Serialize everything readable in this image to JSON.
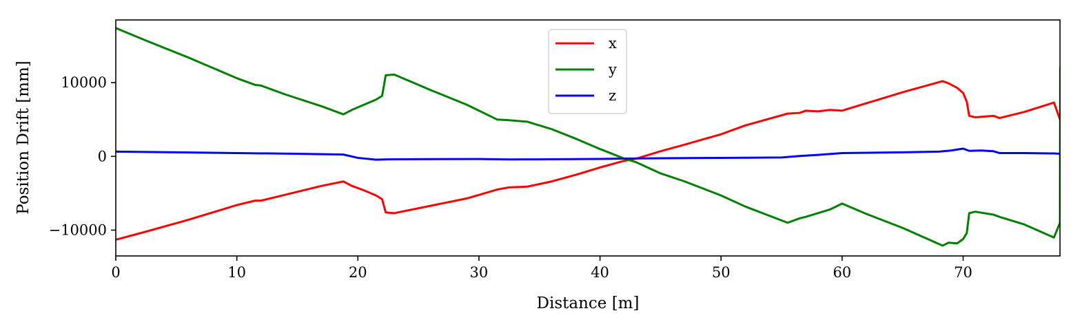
{
  "chart_data": {
    "type": "line",
    "title": "",
    "xlabel": "Distance [m]",
    "ylabel": "Position Drift [mm]",
    "xlim": [
      0,
      78
    ],
    "ylim": [
      -13500,
      18500
    ],
    "xticks": [
      0,
      10,
      20,
      30,
      40,
      50,
      60,
      70
    ],
    "xtick_labels": [
      "0",
      "10",
      "20",
      "30",
      "40",
      "50",
      "60",
      "70"
    ],
    "yticks": [
      -10000,
      0,
      10000
    ],
    "ytick_labels": [
      "−10000",
      "0",
      "10000"
    ],
    "grid": false,
    "legend": {
      "placement": "top-center"
    },
    "series": [
      {
        "name": "x",
        "color": "#ff0000",
        "points": [
          [
            0,
            -11300
          ],
          [
            2.5,
            -10200
          ],
          [
            6,
            -8600
          ],
          [
            10,
            -6600
          ],
          [
            11.5,
            -6000
          ],
          [
            12,
            -6000
          ],
          [
            14,
            -5200
          ],
          [
            17,
            -4000
          ],
          [
            18.8,
            -3400
          ],
          [
            19.5,
            -4000
          ],
          [
            20.5,
            -4600
          ],
          [
            21.5,
            -5300
          ],
          [
            22,
            -5800
          ],
          [
            22.3,
            -7600
          ],
          [
            23,
            -7700
          ],
          [
            26,
            -6700
          ],
          [
            29,
            -5700
          ],
          [
            31.5,
            -4500
          ],
          [
            32.5,
            -4200
          ],
          [
            34,
            -4100
          ],
          [
            36,
            -3400
          ],
          [
            38,
            -2500
          ],
          [
            40,
            -1500
          ],
          [
            42,
            -600
          ],
          [
            43,
            -300
          ],
          [
            45,
            700
          ],
          [
            47,
            1600
          ],
          [
            50,
            3000
          ],
          [
            52,
            4200
          ],
          [
            55.5,
            5800
          ],
          [
            56.5,
            5900
          ],
          [
            57,
            6200
          ],
          [
            58,
            6100
          ],
          [
            59,
            6300
          ],
          [
            60,
            6200
          ],
          [
            62,
            7200
          ],
          [
            65,
            8700
          ],
          [
            68.3,
            10200
          ],
          [
            68.8,
            9900
          ],
          [
            69.5,
            9300
          ],
          [
            70,
            8600
          ],
          [
            70.3,
            7400
          ],
          [
            70.5,
            5500
          ],
          [
            71,
            5300
          ],
          [
            72.5,
            5500
          ],
          [
            73,
            5200
          ],
          [
            75,
            6000
          ],
          [
            77.5,
            7300
          ],
          [
            78,
            5000
          ]
        ]
      },
      {
        "name": "y",
        "color": "#008000",
        "points": [
          [
            0,
            17400
          ],
          [
            2.5,
            15700
          ],
          [
            6,
            13400
          ],
          [
            10,
            10600
          ],
          [
            11.5,
            9700
          ],
          [
            12,
            9600
          ],
          [
            14,
            8400
          ],
          [
            17,
            6800
          ],
          [
            18.8,
            5700
          ],
          [
            19.5,
            6300
          ],
          [
            20.5,
            7000
          ],
          [
            21.5,
            7700
          ],
          [
            22,
            8200
          ],
          [
            22.3,
            11000
          ],
          [
            23,
            11100
          ],
          [
            26,
            9000
          ],
          [
            29,
            7000
          ],
          [
            31.5,
            5000
          ],
          [
            32.5,
            4900
          ],
          [
            34,
            4700
          ],
          [
            36,
            3700
          ],
          [
            38,
            2400
          ],
          [
            40,
            1000
          ],
          [
            42,
            -300
          ],
          [
            43,
            -800
          ],
          [
            45,
            -2300
          ],
          [
            47,
            -3400
          ],
          [
            50,
            -5300
          ],
          [
            52,
            -6800
          ],
          [
            55.5,
            -9000
          ],
          [
            56.5,
            -8400
          ],
          [
            57,
            -8200
          ],
          [
            58,
            -7700
          ],
          [
            59,
            -7200
          ],
          [
            60,
            -6400
          ],
          [
            62,
            -7800
          ],
          [
            65,
            -9700
          ],
          [
            68.3,
            -12100
          ],
          [
            68.8,
            -11700
          ],
          [
            69.5,
            -11800
          ],
          [
            70,
            -11200
          ],
          [
            70.3,
            -10400
          ],
          [
            70.5,
            -7700
          ],
          [
            71,
            -7500
          ],
          [
            72.5,
            -7900
          ],
          [
            73,
            -8200
          ],
          [
            75,
            -9200
          ],
          [
            77.5,
            -11000
          ],
          [
            78,
            -9000
          ],
          [
            78.02,
            12000
          ]
        ]
      },
      {
        "name": "z",
        "color": "#0000ff",
        "points": [
          [
            0,
            650
          ],
          [
            5,
            550
          ],
          [
            10,
            450
          ],
          [
            15,
            350
          ],
          [
            18.8,
            250
          ],
          [
            20,
            -200
          ],
          [
            21.5,
            -450
          ],
          [
            22.5,
            -400
          ],
          [
            25,
            -380
          ],
          [
            30,
            -360
          ],
          [
            32.5,
            -420
          ],
          [
            35,
            -400
          ],
          [
            40,
            -350
          ],
          [
            42,
            -300
          ],
          [
            45,
            -250
          ],
          [
            50,
            -200
          ],
          [
            55,
            -150
          ],
          [
            56.5,
            50
          ],
          [
            58,
            200
          ],
          [
            60,
            450
          ],
          [
            65,
            550
          ],
          [
            68,
            650
          ],
          [
            69,
            800
          ],
          [
            70,
            1050
          ],
          [
            70.5,
            750
          ],
          [
            71.5,
            800
          ],
          [
            72.5,
            700
          ],
          [
            73,
            450
          ],
          [
            75,
            450
          ],
          [
            77.5,
            400
          ],
          [
            78,
            350
          ]
        ]
      }
    ]
  }
}
